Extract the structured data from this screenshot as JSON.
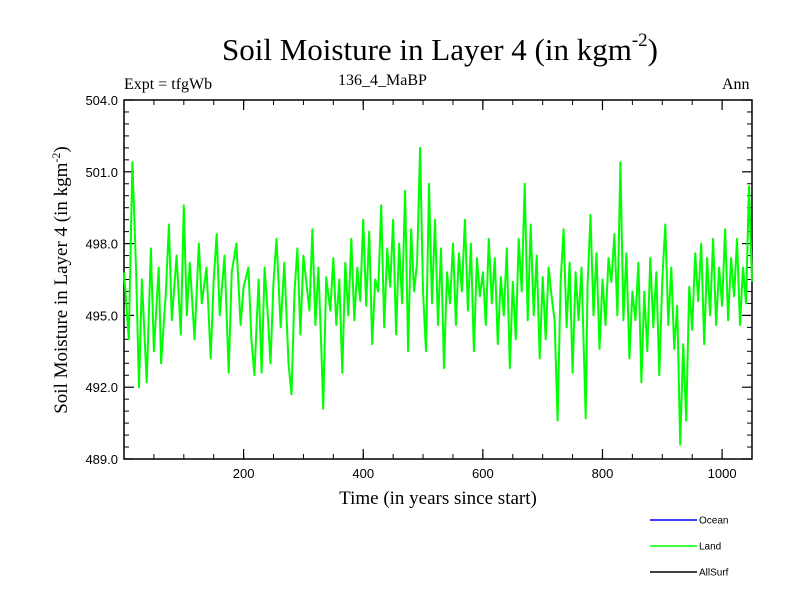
{
  "chart_data": {
    "type": "line",
    "title": "Soil Moisture in Layer 4 (in kgm",
    "title_exponent": "-2",
    "title_close": ")",
    "expt_label": "Expt = tfgWb",
    "subtitle": "136_4_MaBP",
    "season": "Ann",
    "xlabel": "Time (in years since start)",
    "ylabel": "Soil Moisture in Layer 4 (in kgm",
    "ylabel_exponent": "-2",
    "ylabel_close": ")",
    "xlim": [
      0,
      1050
    ],
    "ylim": [
      489.0,
      504.0
    ],
    "xticks": [
      200,
      400,
      600,
      800,
      1000
    ],
    "xtick_labels": [
      "200",
      "400",
      "600",
      "800",
      "1000"
    ],
    "yticks": [
      489.0,
      492.0,
      495.0,
      498.0,
      501.0,
      504.0
    ],
    "ytick_labels": [
      "489.0",
      "492.0",
      "495.0",
      "498.0",
      "501.0",
      "504.0"
    ],
    "series": [
      {
        "name": "Land",
        "color": "#00ff00",
        "points": [
          [
            0,
            496.8
          ],
          [
            8,
            494.0
          ],
          [
            14,
            501.4
          ],
          [
            20,
            497.0
          ],
          [
            25,
            492.0
          ],
          [
            30,
            496.5
          ],
          [
            38,
            492.2
          ],
          [
            45,
            497.8
          ],
          [
            50,
            493.5
          ],
          [
            58,
            497.0
          ],
          [
            62,
            493.0
          ],
          [
            70,
            496.0
          ],
          [
            75,
            498.8
          ],
          [
            80,
            494.8
          ],
          [
            88,
            497.5
          ],
          [
            95,
            494.2
          ],
          [
            100,
            499.6
          ],
          [
            105,
            495.0
          ],
          [
            110,
            497.2
          ],
          [
            118,
            494.0
          ],
          [
            125,
            498.0
          ],
          [
            130,
            495.5
          ],
          [
            138,
            497.0
          ],
          [
            145,
            493.2
          ],
          [
            150,
            496.5
          ],
          [
            155,
            498.4
          ],
          [
            160,
            495.0
          ],
          [
            168,
            497.5
          ],
          [
            175,
            492.6
          ],
          [
            180,
            496.8
          ],
          [
            188,
            498.0
          ],
          [
            195,
            494.6
          ],
          [
            200,
            496.2
          ],
          [
            208,
            497.0
          ],
          [
            213,
            494.0
          ],
          [
            218,
            492.5
          ],
          [
            225,
            496.5
          ],
          [
            230,
            492.6
          ],
          [
            235,
            497.0
          ],
          [
            240,
            495.2
          ],
          [
            245,
            493.0
          ],
          [
            250,
            496.4
          ],
          [
            255,
            498.2
          ],
          [
            262,
            494.5
          ],
          [
            268,
            497.2
          ],
          [
            275,
            493.0
          ],
          [
            280,
            491.7
          ],
          [
            285,
            496.0
          ],
          [
            290,
            497.8
          ],
          [
            295,
            494.2
          ],
          [
            300,
            497.5
          ],
          [
            310,
            495.2
          ],
          [
            315,
            498.6
          ],
          [
            320,
            494.6
          ],
          [
            325,
            497.0
          ],
          [
            330,
            493.5
          ],
          [
            333,
            491.1
          ],
          [
            338,
            496.6
          ],
          [
            345,
            495.2
          ],
          [
            350,
            497.4
          ],
          [
            355,
            494.6
          ],
          [
            360,
            496.5
          ],
          [
            365,
            492.6
          ],
          [
            370,
            497.2
          ],
          [
            375,
            495.0
          ],
          [
            380,
            498.2
          ],
          [
            385,
            494.8
          ],
          [
            390,
            497.0
          ],
          [
            395,
            495.6
          ],
          [
            400,
            499.0
          ],
          [
            405,
            495.4
          ],
          [
            410,
            498.5
          ],
          [
            415,
            493.8
          ],
          [
            420,
            496.5
          ],
          [
            425,
            496.0
          ],
          [
            430,
            499.6
          ],
          [
            435,
            494.5
          ],
          [
            440,
            497.8
          ],
          [
            445,
            496.2
          ],
          [
            450,
            499.0
          ],
          [
            455,
            494.2
          ],
          [
            460,
            498.0
          ],
          [
            465,
            495.5
          ],
          [
            470,
            500.2
          ],
          [
            475,
            493.5
          ],
          [
            480,
            498.6
          ],
          [
            485,
            496.0
          ],
          [
            490,
            497.2
          ],
          [
            495,
            502.0
          ],
          [
            500,
            496.0
          ],
          [
            505,
            493.5
          ],
          [
            510,
            500.5
          ],
          [
            515,
            495.5
          ],
          [
            520,
            499.0
          ],
          [
            525,
            494.6
          ],
          [
            530,
            497.8
          ],
          [
            535,
            492.8
          ],
          [
            540,
            496.8
          ],
          [
            545,
            495.5
          ],
          [
            550,
            498.0
          ],
          [
            555,
            494.6
          ],
          [
            560,
            497.6
          ],
          [
            565,
            496.0
          ],
          [
            570,
            499.0
          ],
          [
            575,
            495.2
          ],
          [
            580,
            498.0
          ],
          [
            585,
            493.5
          ],
          [
            590,
            497.4
          ],
          [
            595,
            495.8
          ],
          [
            600,
            496.8
          ],
          [
            605,
            494.6
          ],
          [
            610,
            498.2
          ],
          [
            615,
            495.5
          ],
          [
            620,
            497.4
          ],
          [
            625,
            493.8
          ],
          [
            630,
            496.6
          ],
          [
            635,
            495.0
          ],
          [
            640,
            497.8
          ],
          [
            645,
            492.8
          ],
          [
            650,
            496.4
          ],
          [
            655,
            494.0
          ],
          [
            660,
            498.2
          ],
          [
            665,
            496.0
          ],
          [
            670,
            500.5
          ],
          [
            675,
            494.8
          ],
          [
            680,
            498.8
          ],
          [
            685,
            495.0
          ],
          [
            690,
            497.5
          ],
          [
            695,
            493.2
          ],
          [
            700,
            496.6
          ],
          [
            705,
            494.0
          ],
          [
            710,
            497.0
          ],
          [
            715,
            495.8
          ],
          [
            720,
            494.8
          ],
          [
            725,
            490.6
          ],
          [
            730,
            496.4
          ],
          [
            735,
            498.6
          ],
          [
            740,
            494.5
          ],
          [
            745,
            497.2
          ],
          [
            750,
            492.6
          ],
          [
            755,
            496.8
          ],
          [
            760,
            494.8
          ],
          [
            765,
            497.0
          ],
          [
            770,
            492.5
          ],
          [
            772,
            490.7
          ],
          [
            775,
            496.2
          ],
          [
            780,
            499.2
          ],
          [
            785,
            495.0
          ],
          [
            790,
            497.6
          ],
          [
            795,
            493.6
          ],
          [
            800,
            496.5
          ],
          [
            805,
            494.6
          ],
          [
            810,
            497.4
          ],
          [
            815,
            496.4
          ],
          [
            820,
            498.4
          ],
          [
            825,
            495.0
          ],
          [
            830,
            501.4
          ],
          [
            835,
            494.8
          ],
          [
            840,
            497.6
          ],
          [
            845,
            493.2
          ],
          [
            850,
            496.0
          ],
          [
            855,
            494.8
          ],
          [
            860,
            497.2
          ],
          [
            865,
            492.2
          ],
          [
            870,
            496.0
          ],
          [
            875,
            493.5
          ],
          [
            880,
            497.4
          ],
          [
            885,
            494.5
          ],
          [
            890,
            496.8
          ],
          [
            895,
            492.5
          ],
          [
            900,
            496.5
          ],
          [
            905,
            498.8
          ],
          [
            910,
            494.6
          ],
          [
            915,
            497.0
          ],
          [
            920,
            493.6
          ],
          [
            925,
            495.4
          ],
          [
            930,
            489.6
          ],
          [
            935,
            493.8
          ],
          [
            940,
            490.6
          ],
          [
            945,
            496.2
          ],
          [
            950,
            494.4
          ],
          [
            955,
            497.6
          ],
          [
            960,
            495.6
          ],
          [
            965,
            498.0
          ],
          [
            970,
            493.8
          ],
          [
            975,
            497.4
          ],
          [
            980,
            495.0
          ],
          [
            985,
            498.2
          ],
          [
            990,
            494.6
          ],
          [
            995,
            497.0
          ],
          [
            1000,
            495.4
          ],
          [
            1005,
            498.6
          ],
          [
            1010,
            494.8
          ],
          [
            1015,
            497.4
          ],
          [
            1020,
            495.8
          ],
          [
            1025,
            498.2
          ],
          [
            1030,
            494.6
          ],
          [
            1035,
            497.0
          ],
          [
            1040,
            495.5
          ],
          [
            1045,
            500.4
          ],
          [
            1050,
            496.4
          ]
        ]
      }
    ],
    "legend": [
      {
        "label": "Ocean",
        "color": "#0000ff"
      },
      {
        "label": "Land",
        "color": "#00ff00"
      },
      {
        "label": "AllSurf",
        "color": "#000000"
      }
    ],
    "legend_position": "bottom-right"
  }
}
